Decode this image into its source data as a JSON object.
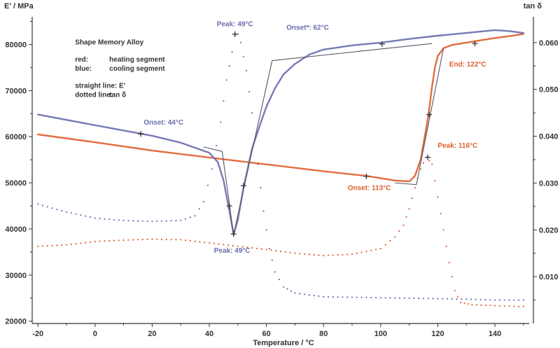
{
  "chart_data": {
    "type": "line",
    "y_left_label": "E' / MPa",
    "y_right_label": "tan δ",
    "xlabel": "Temperature / °C",
    "xlim": [
      -22,
      152
    ],
    "ylim_left": [
      19500,
      86000
    ],
    "ylim_right": [
      0.0,
      0.0655
    ],
    "x_ticks": [
      -20,
      0,
      20,
      40,
      60,
      80,
      100,
      120,
      140
    ],
    "x_tick_labels": [
      "-20",
      "0",
      "20",
      "40",
      "60",
      "80",
      "100",
      "120",
      "140"
    ],
    "y_left_ticks": [
      20000,
      30000,
      40000,
      50000,
      60000,
      70000,
      80000
    ],
    "y_left_tick_labels": [
      "20000",
      "30000",
      "40000",
      "50000",
      "60000",
      "70000",
      "80000"
    ],
    "y_right_ticks": [
      0.01,
      0.02,
      0.03,
      0.04,
      0.05,
      0.06
    ],
    "y_right_tick_labels": [
      "0.010",
      "0.020",
      "0.030",
      "0.040",
      "0.050",
      "0.060"
    ],
    "colors": {
      "heating": "#e06030",
      "cooling": "#6b6fb0",
      "tangent": "#555566",
      "axis": "#333333"
    },
    "series": [
      {
        "name": "E' heating",
        "style": "solid",
        "axis": "left",
        "color": "#e06030",
        "points": [
          [
            -20,
            60500
          ],
          [
            0,
            58800
          ],
          [
            20,
            57000
          ],
          [
            40,
            55500
          ],
          [
            60,
            54000
          ],
          [
            80,
            52500
          ],
          [
            95,
            51500
          ],
          [
            105,
            50500
          ],
          [
            110,
            50300
          ],
          [
            112,
            51500
          ],
          [
            114,
            55000
          ],
          [
            116,
            62000
          ],
          [
            117,
            66000
          ],
          [
            118,
            71000
          ],
          [
            119,
            75000
          ],
          [
            120,
            77500
          ],
          [
            122,
            79200
          ],
          [
            125,
            79900
          ],
          [
            130,
            80400
          ],
          [
            135,
            80900
          ],
          [
            140,
            81400
          ],
          [
            145,
            81800
          ],
          [
            150,
            82300
          ]
        ]
      },
      {
        "name": "E' cooling",
        "style": "solid",
        "axis": "left",
        "color": "#6b6fb0",
        "points": [
          [
            -20,
            64800
          ],
          [
            0,
            62500
          ],
          [
            20,
            60200
          ],
          [
            30,
            58700
          ],
          [
            40,
            56500
          ],
          [
            43,
            54500
          ],
          [
            45,
            50500
          ],
          [
            47,
            44000
          ],
          [
            48.5,
            38800
          ],
          [
            50,
            42000
          ],
          [
            52,
            49000
          ],
          [
            55,
            57500
          ],
          [
            58,
            63000
          ],
          [
            60,
            66500
          ],
          [
            63,
            70500
          ],
          [
            66,
            73500
          ],
          [
            70,
            75800
          ],
          [
            75,
            77800
          ],
          [
            80,
            78900
          ],
          [
            90,
            79800
          ],
          [
            100,
            80400
          ],
          [
            110,
            81200
          ],
          [
            120,
            81900
          ],
          [
            130,
            82500
          ],
          [
            140,
            83100
          ],
          [
            145,
            82900
          ],
          [
            150,
            82500
          ]
        ]
      },
      {
        "name": "tan δ heating",
        "style": "dotted",
        "axis": "right",
        "color": "#e06030",
        "points": [
          [
            -20,
            0.0165
          ],
          [
            -10,
            0.0168
          ],
          [
            0,
            0.0175
          ],
          [
            10,
            0.0178
          ],
          [
            20,
            0.018
          ],
          [
            30,
            0.0179
          ],
          [
            40,
            0.0172
          ],
          [
            50,
            0.0165
          ],
          [
            60,
            0.0158
          ],
          [
            70,
            0.015
          ],
          [
            80,
            0.0145
          ],
          [
            90,
            0.0148
          ],
          [
            100,
            0.016
          ],
          [
            105,
            0.0185
          ],
          [
            108,
            0.021
          ],
          [
            110,
            0.0245
          ],
          [
            112,
            0.029
          ],
          [
            114,
            0.033
          ],
          [
            116,
            0.0355
          ],
          [
            118,
            0.034
          ],
          [
            120,
            0.027
          ],
          [
            122,
            0.02
          ],
          [
            124,
            0.013
          ],
          [
            126,
            0.007
          ],
          [
            128,
            0.0045
          ],
          [
            132,
            0.004
          ],
          [
            140,
            0.0038
          ],
          [
            150,
            0.0036
          ]
        ]
      },
      {
        "name": "tan δ cooling",
        "style": "dotted",
        "axis": "right",
        "color": "#6b6fb0",
        "points": [
          [
            -20,
            0.0255
          ],
          [
            -10,
            0.0238
          ],
          [
            0,
            0.0225
          ],
          [
            10,
            0.022
          ],
          [
            20,
            0.0218
          ],
          [
            30,
            0.022
          ],
          [
            35,
            0.023
          ],
          [
            38,
            0.026
          ],
          [
            41,
            0.033
          ],
          [
            44,
            0.043
          ],
          [
            46,
            0.052
          ],
          [
            48,
            0.058
          ],
          [
            49,
            0.0615
          ],
          [
            50,
            0.0618
          ],
          [
            51,
            0.06
          ],
          [
            53,
            0.054
          ],
          [
            55,
            0.045
          ],
          [
            57,
            0.034
          ],
          [
            59,
            0.024
          ],
          [
            61,
            0.016
          ],
          [
            63,
            0.011
          ],
          [
            66,
            0.0078
          ],
          [
            70,
            0.0065
          ],
          [
            80,
            0.0057
          ],
          [
            100,
            0.0055
          ],
          [
            120,
            0.0053
          ],
          [
            130,
            0.0052
          ],
          [
            140,
            0.005
          ],
          [
            150,
            0.005
          ]
        ]
      },
      {
        "name": "tangent lines",
        "style": "thin",
        "axis": "left",
        "color": "#555566",
        "segments": [
          [
            [
              38,
              57800
            ],
            [
              44.5,
              56800
            ]
          ],
          [
            [
              44.5,
              56800
            ],
            [
              48.5,
              38800
            ]
          ],
          [
            [
              48.5,
              38800
            ],
            [
              62,
              76500
            ]
          ],
          [
            [
              62,
              76500
            ],
            [
              118,
              80200
            ]
          ],
          [
            [
              105,
              50000
            ],
            [
              112.5,
              49600
            ]
          ],
          [
            [
              112.5,
              49600
            ],
            [
              122,
              79200
            ]
          ]
        ]
      }
    ],
    "markers": [
      {
        "x": 16,
        "y": 60600,
        "axis": "left",
        "color": "#333333"
      },
      {
        "x": 48.5,
        "y": 38900,
        "axis": "left",
        "color": "#333333"
      },
      {
        "x": 47,
        "y": 45000,
        "axis": "left",
        "color": "#333333"
      },
      {
        "x": 52,
        "y": 49400,
        "axis": "left",
        "color": "#333333"
      },
      {
        "x": 49,
        "y": 0.0618,
        "axis": "right",
        "color": "#333333"
      },
      {
        "x": 100.5,
        "y": 80100,
        "axis": "left",
        "color": "#333333"
      },
      {
        "x": 95,
        "y": 51400,
        "axis": "left",
        "color": "#333333"
      },
      {
        "x": 116.5,
        "y": 0.0355,
        "axis": "right",
        "color": "#333333"
      },
      {
        "x": 117,
        "y": 64800,
        "axis": "left",
        "color": "#333333"
      },
      {
        "x": 133,
        "y": 80200,
        "axis": "left",
        "color": "#333333"
      }
    ],
    "annotations": [
      {
        "text": "Peak: 49°C",
        "x": 49,
        "y": 0.0623,
        "axis": "right",
        "color": "#6b6fb0",
        "anchor": "middle",
        "dy": -8
      },
      {
        "text": "Onset*: 62°C",
        "x": 67,
        "y": 83200,
        "axis": "left",
        "color": "#6b6fb0",
        "anchor": "start",
        "dy": 0
      },
      {
        "text": "Onset: 44°C",
        "x": 24,
        "y": 62000,
        "axis": "left",
        "color": "#6b6fb0",
        "anchor": "middle",
        "dy": -4
      },
      {
        "text": "Peak: 49°C",
        "x": 48,
        "y": 34800,
        "axis": "left",
        "color": "#6b6fb0",
        "anchor": "middle",
        "dy": 0
      },
      {
        "text": "End: 122°C",
        "x": 124,
        "y": 75200,
        "axis": "left",
        "color": "#e06030",
        "anchor": "start",
        "dy": 0
      },
      {
        "text": "Peak: 116°C",
        "x": 120,
        "y": 0.0375,
        "axis": "right",
        "color": "#e06030",
        "anchor": "start",
        "dy": 0
      },
      {
        "text": "Onset: 113°C",
        "x": 96,
        "y": 0.0285,
        "axis": "right",
        "color": "#e06030",
        "anchor": "middle",
        "dy": 0
      }
    ],
    "notes": [
      {
        "text": "Shape Memory Alloy",
        "x": -7,
        "y": 80000
      },
      {
        "text": "red:",
        "x": -7,
        "y": 76300
      },
      {
        "text": "heating segment",
        "x": 5,
        "y": 76300
      },
      {
        "text": "blue:",
        "x": -7,
        "y": 74300
      },
      {
        "text": "cooling segment",
        "x": 5,
        "y": 74300
      },
      {
        "text": "straight line: E'",
        "x": -7,
        "y": 70600
      },
      {
        "text": "dotted line:",
        "x": -7,
        "y": 68600
      },
      {
        "text": "tan δ",
        "x": 5,
        "y": 68600
      }
    ]
  }
}
